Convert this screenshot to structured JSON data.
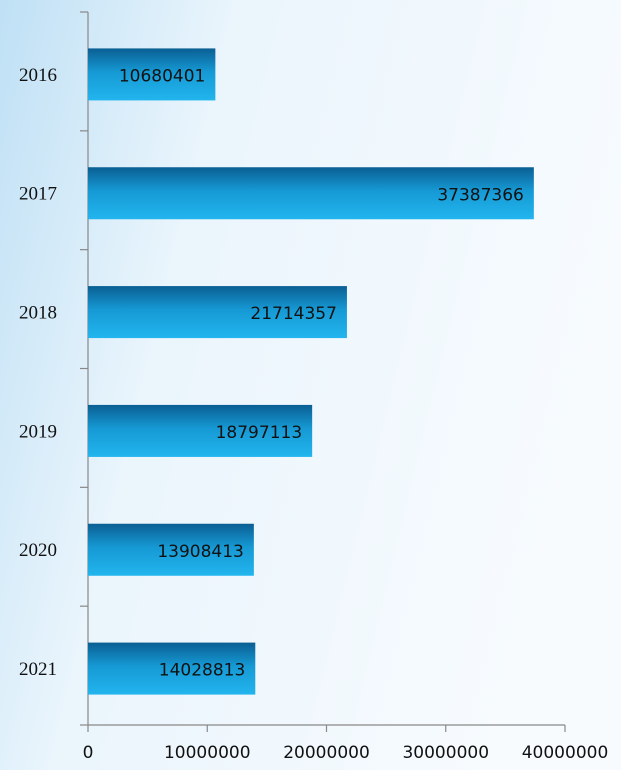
{
  "chart_data": {
    "type": "barh",
    "categories": [
      "2016",
      "2017",
      "2018",
      "2019",
      "2020",
      "2021"
    ],
    "values": [
      10680401,
      37387366,
      21714357,
      18797113,
      13908413,
      14028813
    ],
    "color": "#1299d6",
    "xlim": [
      0,
      40000000
    ],
    "xticks": [
      0,
      10000000,
      20000000,
      30000000,
      40000000
    ],
    "grid": false
  }
}
